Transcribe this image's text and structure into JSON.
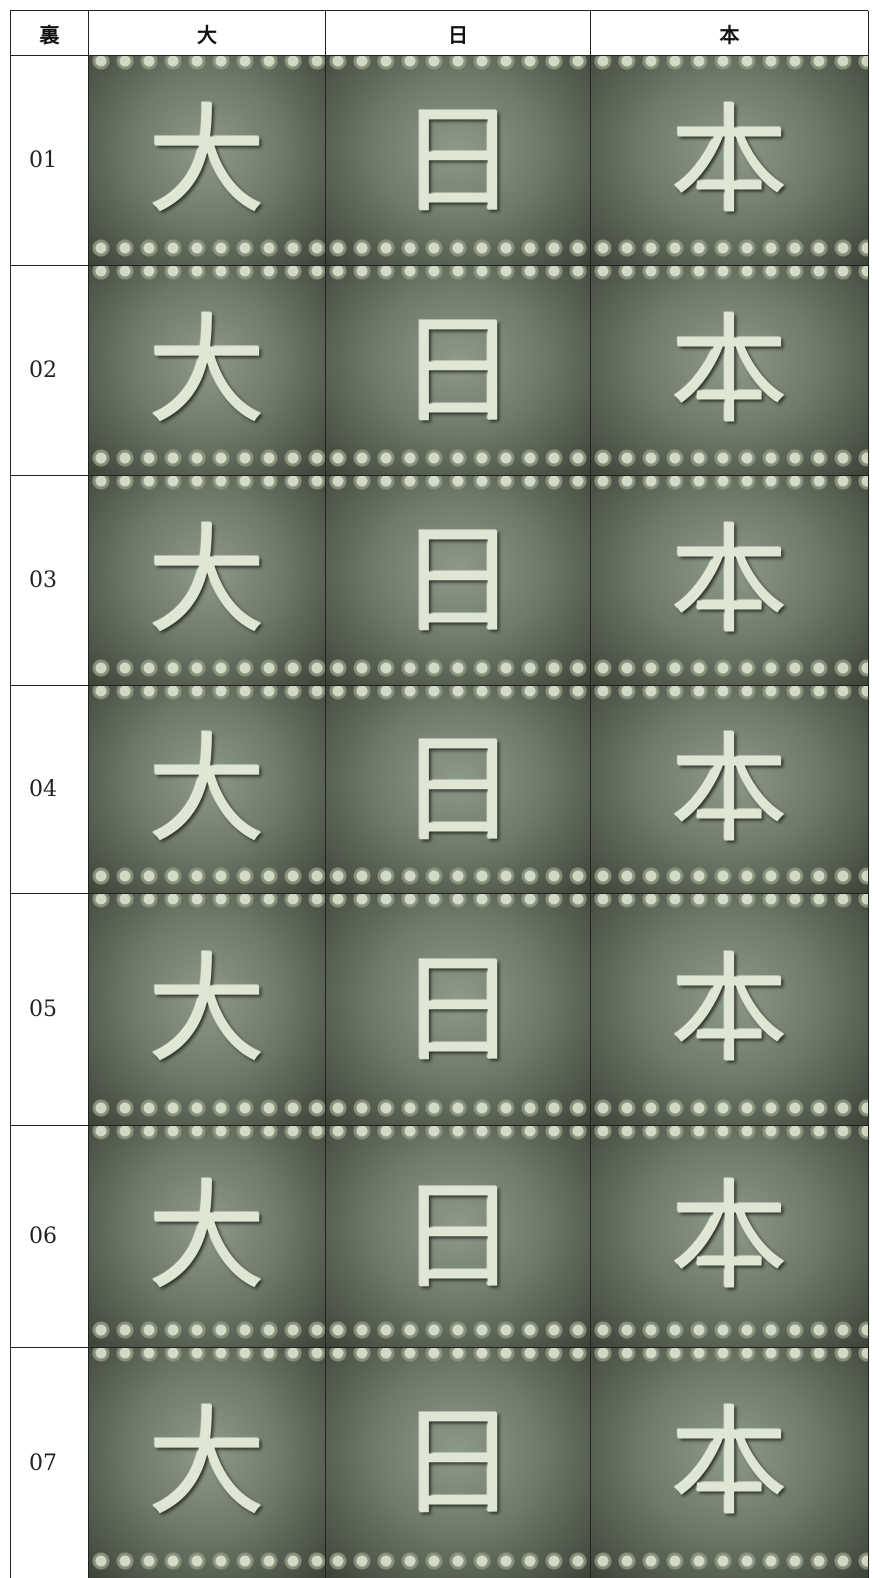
{
  "table": {
    "header": [
      "裏",
      "大",
      "日",
      "本"
    ],
    "rows": [
      "01",
      "02",
      "03",
      "04",
      "05",
      "06",
      "07"
    ]
  }
}
